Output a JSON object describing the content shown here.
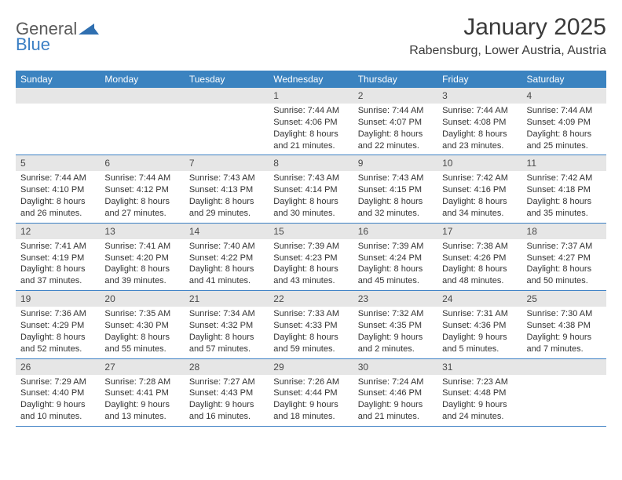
{
  "logo": {
    "text1": "General",
    "text2": "Blue"
  },
  "title": "January 2025",
  "location": "Rabensburg, Lower Austria, Austria",
  "day_headers": [
    "Sunday",
    "Monday",
    "Tuesday",
    "Wednesday",
    "Thursday",
    "Friday",
    "Saturday"
  ],
  "colors": {
    "header_bg": "#3b83c0",
    "header_text": "#ffffff",
    "daynum_bg": "#e6e6e6",
    "border": "#3b7fc4",
    "text": "#333333"
  },
  "weeks": [
    [
      null,
      null,
      null,
      {
        "n": "1",
        "sr": "7:44 AM",
        "ss": "4:06 PM",
        "dl1": "8 hours",
        "dl2": "and 21 minutes."
      },
      {
        "n": "2",
        "sr": "7:44 AM",
        "ss": "4:07 PM",
        "dl1": "8 hours",
        "dl2": "and 22 minutes."
      },
      {
        "n": "3",
        "sr": "7:44 AM",
        "ss": "4:08 PM",
        "dl1": "8 hours",
        "dl2": "and 23 minutes."
      },
      {
        "n": "4",
        "sr": "7:44 AM",
        "ss": "4:09 PM",
        "dl1": "8 hours",
        "dl2": "and 25 minutes."
      }
    ],
    [
      {
        "n": "5",
        "sr": "7:44 AM",
        "ss": "4:10 PM",
        "dl1": "8 hours",
        "dl2": "and 26 minutes."
      },
      {
        "n": "6",
        "sr": "7:44 AM",
        "ss": "4:12 PM",
        "dl1": "8 hours",
        "dl2": "and 27 minutes."
      },
      {
        "n": "7",
        "sr": "7:43 AM",
        "ss": "4:13 PM",
        "dl1": "8 hours",
        "dl2": "and 29 minutes."
      },
      {
        "n": "8",
        "sr": "7:43 AM",
        "ss": "4:14 PM",
        "dl1": "8 hours",
        "dl2": "and 30 minutes."
      },
      {
        "n": "9",
        "sr": "7:43 AM",
        "ss": "4:15 PM",
        "dl1": "8 hours",
        "dl2": "and 32 minutes."
      },
      {
        "n": "10",
        "sr": "7:42 AM",
        "ss": "4:16 PM",
        "dl1": "8 hours",
        "dl2": "and 34 minutes."
      },
      {
        "n": "11",
        "sr": "7:42 AM",
        "ss": "4:18 PM",
        "dl1": "8 hours",
        "dl2": "and 35 minutes."
      }
    ],
    [
      {
        "n": "12",
        "sr": "7:41 AM",
        "ss": "4:19 PM",
        "dl1": "8 hours",
        "dl2": "and 37 minutes."
      },
      {
        "n": "13",
        "sr": "7:41 AM",
        "ss": "4:20 PM",
        "dl1": "8 hours",
        "dl2": "and 39 minutes."
      },
      {
        "n": "14",
        "sr": "7:40 AM",
        "ss": "4:22 PM",
        "dl1": "8 hours",
        "dl2": "and 41 minutes."
      },
      {
        "n": "15",
        "sr": "7:39 AM",
        "ss": "4:23 PM",
        "dl1": "8 hours",
        "dl2": "and 43 minutes."
      },
      {
        "n": "16",
        "sr": "7:39 AM",
        "ss": "4:24 PM",
        "dl1": "8 hours",
        "dl2": "and 45 minutes."
      },
      {
        "n": "17",
        "sr": "7:38 AM",
        "ss": "4:26 PM",
        "dl1": "8 hours",
        "dl2": "and 48 minutes."
      },
      {
        "n": "18",
        "sr": "7:37 AM",
        "ss": "4:27 PM",
        "dl1": "8 hours",
        "dl2": "and 50 minutes."
      }
    ],
    [
      {
        "n": "19",
        "sr": "7:36 AM",
        "ss": "4:29 PM",
        "dl1": "8 hours",
        "dl2": "and 52 minutes."
      },
      {
        "n": "20",
        "sr": "7:35 AM",
        "ss": "4:30 PM",
        "dl1": "8 hours",
        "dl2": "and 55 minutes."
      },
      {
        "n": "21",
        "sr": "7:34 AM",
        "ss": "4:32 PM",
        "dl1": "8 hours",
        "dl2": "and 57 minutes."
      },
      {
        "n": "22",
        "sr": "7:33 AM",
        "ss": "4:33 PM",
        "dl1": "8 hours",
        "dl2": "and 59 minutes."
      },
      {
        "n": "23",
        "sr": "7:32 AM",
        "ss": "4:35 PM",
        "dl1": "9 hours",
        "dl2": "and 2 minutes."
      },
      {
        "n": "24",
        "sr": "7:31 AM",
        "ss": "4:36 PM",
        "dl1": "9 hours",
        "dl2": "and 5 minutes."
      },
      {
        "n": "25",
        "sr": "7:30 AM",
        "ss": "4:38 PM",
        "dl1": "9 hours",
        "dl2": "and 7 minutes."
      }
    ],
    [
      {
        "n": "26",
        "sr": "7:29 AM",
        "ss": "4:40 PM",
        "dl1": "9 hours",
        "dl2": "and 10 minutes."
      },
      {
        "n": "27",
        "sr": "7:28 AM",
        "ss": "4:41 PM",
        "dl1": "9 hours",
        "dl2": "and 13 minutes."
      },
      {
        "n": "28",
        "sr": "7:27 AM",
        "ss": "4:43 PM",
        "dl1": "9 hours",
        "dl2": "and 16 minutes."
      },
      {
        "n": "29",
        "sr": "7:26 AM",
        "ss": "4:44 PM",
        "dl1": "9 hours",
        "dl2": "and 18 minutes."
      },
      {
        "n": "30",
        "sr": "7:24 AM",
        "ss": "4:46 PM",
        "dl1": "9 hours",
        "dl2": "and 21 minutes."
      },
      {
        "n": "31",
        "sr": "7:23 AM",
        "ss": "4:48 PM",
        "dl1": "9 hours",
        "dl2": "and 24 minutes."
      },
      null
    ]
  ]
}
